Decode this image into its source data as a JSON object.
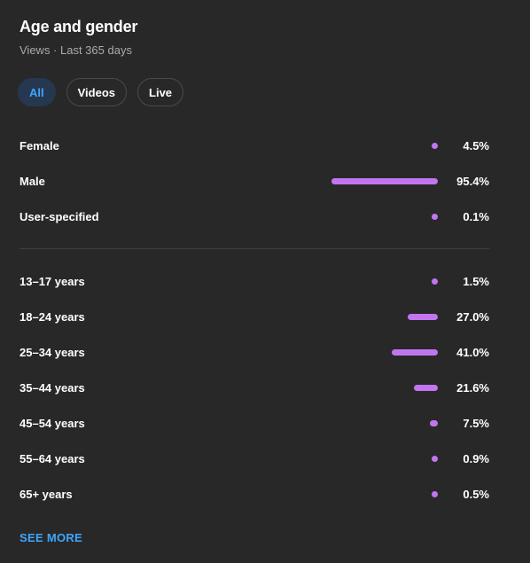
{
  "header": {
    "title": "Age and gender",
    "subtitle": "Views · Last 365 days"
  },
  "filters": [
    {
      "label": "All",
      "selected": true
    },
    {
      "label": "Videos",
      "selected": false
    },
    {
      "label": "Live",
      "selected": false
    }
  ],
  "gender": [
    {
      "label": "Female",
      "value": "4.5%",
      "percent": 4.5
    },
    {
      "label": "Male",
      "value": "95.4%",
      "percent": 95.4
    },
    {
      "label": "User-specified",
      "value": "0.1%",
      "percent": 0.1
    }
  ],
  "age": [
    {
      "label": "13–17 years",
      "value": "1.5%",
      "percent": 1.5
    },
    {
      "label": "18–24 years",
      "value": "27.0%",
      "percent": 27.0
    },
    {
      "label": "25–34 years",
      "value": "41.0%",
      "percent": 41.0
    },
    {
      "label": "35–44 years",
      "value": "21.6%",
      "percent": 21.6
    },
    {
      "label": "45–54 years",
      "value": "7.5%",
      "percent": 7.5
    },
    {
      "label": "55–64 years",
      "value": "0.9%",
      "percent": 0.9
    },
    {
      "label": "65+ years",
      "value": "0.5%",
      "percent": 0.5
    }
  ],
  "footer": {
    "see_more_label": "SEE MORE"
  },
  "colors": {
    "bar": "#c176f0",
    "accent": "#3ea6ff",
    "background": "#282828"
  }
}
